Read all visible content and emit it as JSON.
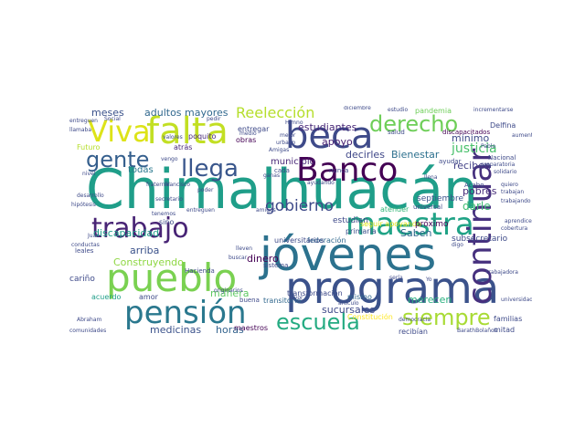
{
  "palette": {
    "yellow": "#e5e419",
    "lime": "#b5de2b",
    "green": "#6ece58",
    "sea": "#35b779",
    "teal": "#1f9e89",
    "steel": "#26828e",
    "blue": "#31688e",
    "indigo": "#3e4a89",
    "purple": "#482878",
    "deep": "#440154"
  },
  "words": [
    {
      "text": "Chimalhuacán",
      "color": "#1f9e89"
    },
    {
      "text": "jóvenes",
      "color": "#2c728e"
    },
    {
      "text": "programa",
      "color": "#3b528b"
    },
    {
      "text": "Banco",
      "color": "#440154"
    },
    {
      "text": "falta",
      "color": "#c2df23"
    },
    {
      "text": "beca",
      "color": "#3e4a89"
    },
    {
      "text": "maestra",
      "color": "#20a386"
    },
    {
      "text": "pueblo",
      "color": "#7ad151"
    },
    {
      "text": "pensión",
      "color": "#2a788e"
    },
    {
      "text": "continuar",
      "color": "#46307e"
    },
    {
      "text": "trabajo",
      "color": "#482475"
    },
    {
      "text": "Viva",
      "color": "#dde318"
    },
    {
      "text": "derecho",
      "color": "#6ece58"
    },
    {
      "text": "gente",
      "color": "#355f8d"
    },
    {
      "text": "llega",
      "color": "#39568c"
    },
    {
      "text": "escuela",
      "color": "#25ab82"
    },
    {
      "text": "siempre",
      "color": "#a8db34"
    },
    {
      "text": "Reelección",
      "color": "#b5de2b"
    },
    {
      "text": "gobierno",
      "color": "#3e4a89"
    },
    {
      "text": "meses",
      "color": "#3b528b"
    },
    {
      "text": "adultos mayores",
      "color": "#31688e"
    },
    {
      "text": "estudiantes",
      "color": "#482878"
    },
    {
      "text": "justicia",
      "color": "#4ac16d"
    },
    {
      "text": "darle",
      "color": "#3fbc73"
    },
    {
      "text": "apoyo",
      "color": "#482173"
    },
    {
      "text": "decirles",
      "color": "#3f4788"
    },
    {
      "text": "Bienestar",
      "color": "#2d708e"
    },
    {
      "text": "reciben",
      "color": "#424086"
    },
    {
      "text": "pobres",
      "color": "#472d7b"
    },
    {
      "text": "merecen",
      "color": "#29af7f"
    },
    {
      "text": "sucursales",
      "color": "#3e4989"
    },
    {
      "text": "medicinas",
      "color": "#3b528b"
    },
    {
      "text": "horas",
      "color": "#33638d"
    },
    {
      "text": "manera",
      "color": "#5ec962"
    },
    {
      "text": "Construyendo",
      "color": "#8fd744"
    },
    {
      "text": "arriba",
      "color": "#3b528b"
    },
    {
      "text": "dinero",
      "color": "#440154"
    },
    {
      "text": "discapacidad",
      "color": "#1f9e89"
    },
    {
      "text": "municipio",
      "color": "#482878"
    },
    {
      "text": "mínimo",
      "color": "#3e4a89"
    },
    {
      "text": "Saben",
      "color": "#31688e"
    },
    {
      "text": "todas",
      "color": "#2a788e"
    },
    {
      "text": "atrás",
      "color": "#482878"
    },
    {
      "text": "Futuro",
      "color": "#b5de2b"
    },
    {
      "text": "seguir apoyando",
      "color": "#dde318"
    },
    {
      "text": "entregar",
      "color": "#3e4a89"
    },
    {
      "text": "poquito",
      "color": "#482878"
    },
    {
      "text": "obras",
      "color": "#440154"
    },
    {
      "text": "sino",
      "color": "#3e4a89"
    },
    {
      "text": "acuerdo",
      "color": "#1f9e89"
    },
    {
      "text": "estudian",
      "color": "#3e4a89"
    },
    {
      "text": "septiembre",
      "color": "#3b528b"
    },
    {
      "text": "próximo",
      "color": "#440154"
    },
    {
      "text": "subsecretario",
      "color": "#3e4a89"
    },
    {
      "text": "federación",
      "color": "#31688e"
    },
    {
      "text": "universitarios",
      "color": "#3e4a89"
    },
    {
      "text": "primaria",
      "color": "#3b528b"
    },
    {
      "text": "atender",
      "color": "#35b779"
    },
    {
      "text": "mismo",
      "color": "#31688e"
    },
    {
      "text": "recibían",
      "color": "#3e4a89"
    },
    {
      "text": "Delfina",
      "color": "#3e4a89"
    },
    {
      "text": "amor",
      "color": "#3e4a89"
    },
    {
      "text": "transformación",
      "color": "#3e4a89"
    },
    {
      "text": "transitorio",
      "color": "#31688e"
    },
    {
      "text": "Constitución",
      "color": "#fde725"
    },
    {
      "text": "maestros",
      "color": "#440154"
    },
    {
      "text": "mitad",
      "color": "#3e4a89"
    },
    {
      "text": "familias",
      "color": "#3e4a89"
    },
    {
      "text": "cariño",
      "color": "#3e4a89"
    },
    {
      "text": "pandemia",
      "color": "#6ece58"
    },
    {
      "text": "salud",
      "color": "#3e4a89"
    },
    {
      "text": "discapacitados",
      "color": "#440154"
    },
    {
      "text": "Nacional",
      "color": "#3e4a89"
    },
    {
      "text": "Hacienda",
      "color": "#3e4a89"
    },
    {
      "text": "buena",
      "color": "#3e4a89"
    },
    {
      "text": "sistema",
      "color": "#3e4a89"
    },
    {
      "text": "universal",
      "color": "#3e4a89"
    },
    {
      "text": "Acabo",
      "color": "#3e4a89"
    },
    {
      "text": "quiero",
      "color": "#3e4a89"
    },
    {
      "text": "ayudar",
      "color": "#3e4a89"
    },
    {
      "text": "cada",
      "color": "#3e4a89"
    },
    {
      "text": "nunca",
      "color": "#3e4a89"
    },
    {
      "text": "favor",
      "color": "#3e4a89"
    },
    {
      "text": "artículo",
      "color": "#3e4a89"
    },
    {
      "text": "aumentar",
      "color": "#3e4a89"
    },
    {
      "text": "llamaba",
      "color": "#3e4a89"
    },
    {
      "text": "Social",
      "color": "#3e4a89"
    },
    {
      "text": "pedir",
      "color": "#3e4a89"
    },
    {
      "text": "valores",
      "color": "#3e4a89"
    },
    {
      "text": "trabajadora",
      "color": "#3e4a89"
    },
    {
      "text": "aprendices",
      "color": "#3e4a89"
    },
    {
      "text": "universidad",
      "color": "#3e4a89"
    },
    {
      "text": "comunidades",
      "color": "#3e4a89"
    },
    {
      "text": "entreguen",
      "color": "#3e4a89"
    },
    {
      "text": "secretario",
      "color": "#3e4a89"
    },
    {
      "text": "originarios",
      "color": "#3e4a89"
    },
    {
      "text": "Francisco",
      "color": "#3e4a89"
    },
    {
      "text": "amigos",
      "color": "#3e4a89"
    },
    {
      "text": "Amigas",
      "color": "#3e4a89"
    },
    {
      "text": "estudio",
      "color": "#3e4a89"
    },
    {
      "text": "diciembre",
      "color": "#3e4a89"
    },
    {
      "text": "ganas",
      "color": "#3e4a89"
    },
    {
      "text": "urbano",
      "color": "#3e4a89"
    },
    {
      "text": "fraternal",
      "color": "#3e4a89"
    },
    {
      "text": "tenemos",
      "color": "#3e4a89"
    },
    {
      "text": "vengo",
      "color": "#3e4a89"
    },
    {
      "text": "medio",
      "color": "#3e4a89"
    },
    {
      "text": "mejor",
      "color": "#3e4a89"
    },
    {
      "text": "ayudando",
      "color": "#3e4a89"
    },
    {
      "text": "poder",
      "color": "#3e4a89"
    },
    {
      "text": "nivel",
      "color": "#3e4a89"
    },
    {
      "text": "Juan",
      "color": "#3e4a89"
    },
    {
      "text": "buscar",
      "color": "#3e4a89"
    },
    {
      "text": "lleven",
      "color": "#3e4a89"
    },
    {
      "text": "digo",
      "color": "#3e4a89"
    },
    {
      "text": "sería",
      "color": "#3e4a89"
    },
    {
      "text": "Yo",
      "color": "#3e4a89"
    },
    {
      "text": "democracia",
      "color": "#3e4a89"
    },
    {
      "text": "preparatoria",
      "color": "#3e4a89"
    },
    {
      "text": "solidario",
      "color": "#3e4a89"
    },
    {
      "text": "trabajan",
      "color": "#3e4a89"
    },
    {
      "text": "trabajando",
      "color": "#3e4a89"
    },
    {
      "text": "llena",
      "color": "#3e4a89"
    },
    {
      "text": "Pablo",
      "color": "#3e4a89"
    },
    {
      "text": "Himno",
      "color": "#3e4a89"
    },
    {
      "text": "Abraham",
      "color": "#3e4a89"
    },
    {
      "text": "conductas",
      "color": "#3e4a89"
    },
    {
      "text": "cobertura",
      "color": "#3e4a89"
    },
    {
      "text": "hipótesis",
      "color": "#3e4a89"
    },
    {
      "text": "incrementarse",
      "color": "#3e4a89"
    },
    {
      "text": "entreguen",
      "color": "#3e4a89"
    },
    {
      "text": "desarrollo",
      "color": "#3e4a89"
    },
    {
      "text": "BarathBolaños",
      "color": "#3e4a89"
    },
    {
      "text": "leales",
      "color": "#3e4a89"
    },
    {
      "text": "puedan",
      "color": "#3e4a89"
    },
    {
      "text": "corazón",
      "color": "#3e4a89"
    },
    {
      "text": "ir",
      "color": "#3e4a89"
    }
  ]
}
